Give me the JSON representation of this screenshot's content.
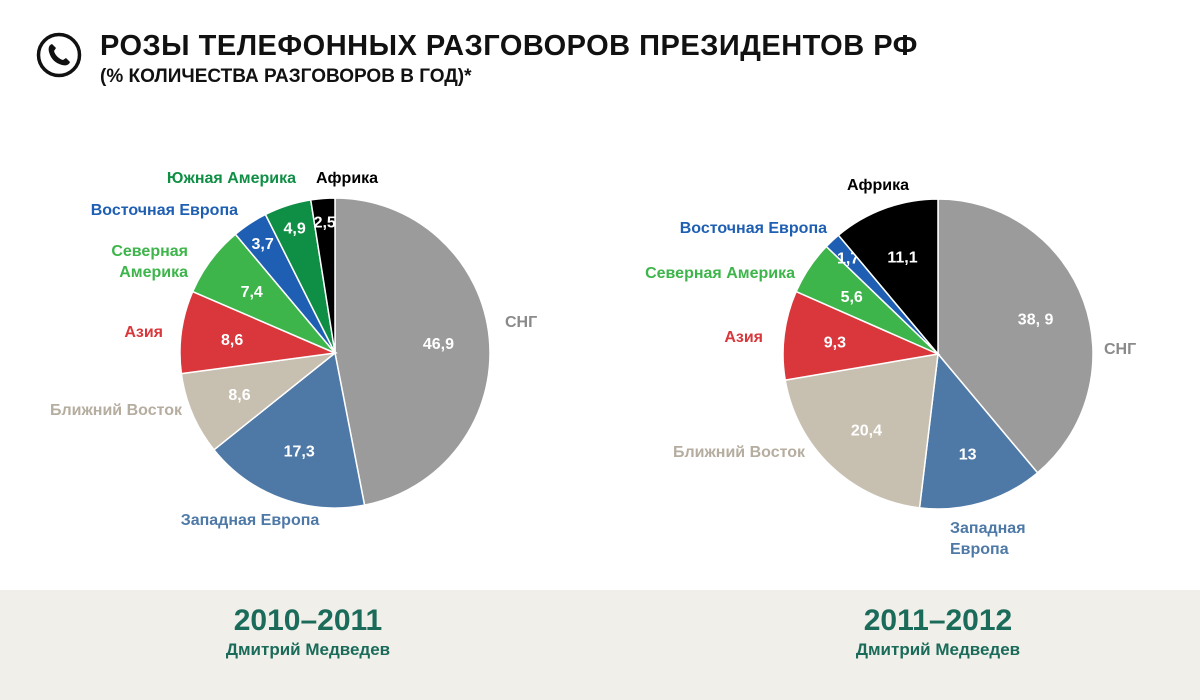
{
  "header": {
    "title": "РОЗЫ ТЕЛЕФОННЫХ РАЗГОВОРОВ ПРЕЗИДЕНТОВ РФ",
    "subtitle": "(% КОЛИЧЕСТВА РАЗГОВОРОВ В ГОД)*",
    "icon": "phone-icon"
  },
  "colors": {
    "СНГ": "#9b9b9b",
    "Западная Европа": "#4e79a7",
    "Ближний Восток": "#c7bfb0",
    "Азия": "#d9373b",
    "Северная Америка": "#3db54a",
    "Восточная Европа": "#1f5fb3",
    "Южная Америка": "#0f8f45",
    "Африка": "#000000"
  },
  "label_colors": {
    "СНГ": "#8a8a8a",
    "Западная Европа": "#4e79a7",
    "Ближний Восток": "#b5ad9f",
    "Азия": "#d9373b",
    "Северная Америка": "#3db54a",
    "Восточная Европа": "#1f5fb3",
    "Южная Америка": "#0f8f45",
    "Африка": "#000000"
  },
  "chart_data": [
    {
      "type": "pie",
      "title": "2010–2011",
      "subtitle": "Дмитрий Медведев",
      "slices": [
        {
          "label": "СНГ",
          "value": 46.9,
          "value_text": "46,9"
        },
        {
          "label": "Западная Европа",
          "value": 17.3,
          "value_text": "17,3"
        },
        {
          "label": "Ближний Восток",
          "value": 8.6,
          "value_text": "8,6"
        },
        {
          "label": "Азия",
          "value": 8.6,
          "value_text": "8,6"
        },
        {
          "label": "Северная Америка",
          "label_lines": [
            "Северная",
            "Америка"
          ],
          "value": 7.4,
          "value_text": "7,4"
        },
        {
          "label": "Восточная Европа",
          "value": 3.7,
          "value_text": "3,7"
        },
        {
          "label": "Южная Америка",
          "value": 4.9,
          "value_text": "4,9"
        },
        {
          "label": "Африка",
          "value": 2.5,
          "value_text": "2,5"
        }
      ]
    },
    {
      "type": "pie",
      "title": "2011–2012",
      "subtitle": "Дмитрий Медведев",
      "slices": [
        {
          "label": "СНГ",
          "value": 38.9,
          "value_text": "38, 9"
        },
        {
          "label": "Западная Европа",
          "label_lines": [
            "Западная",
            "Европа"
          ],
          "value": 13,
          "value_text": "13"
        },
        {
          "label": "Ближний Восток",
          "value": 20.4,
          "value_text": "20,4"
        },
        {
          "label": "Азия",
          "value": 9.3,
          "value_text": "9,3"
        },
        {
          "label": "Северная Америка",
          "value": 5.6,
          "value_text": "5,6"
        },
        {
          "label": "Восточная Европа",
          "value": 1.7,
          "value_text": "1,7"
        },
        {
          "label": "Африка",
          "value": 11.1,
          "value_text": "11,1"
        }
      ]
    }
  ]
}
